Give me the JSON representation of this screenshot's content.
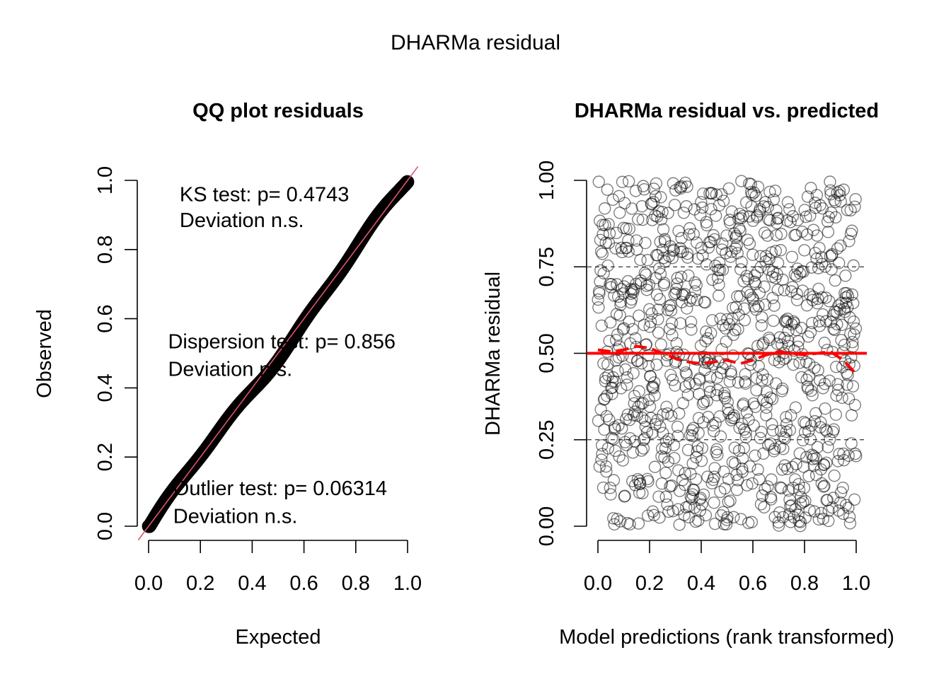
{
  "page_title": "DHARMa residual",
  "chart_data": [
    {
      "type": "scatter",
      "title": "QQ plot residuals",
      "xlabel": "Expected",
      "ylabel": "Observed",
      "xlim": [
        0,
        1
      ],
      "ylim": [
        0,
        1
      ],
      "x_ticks": [
        "0.0",
        "0.2",
        "0.4",
        "0.6",
        "0.8",
        "1.0"
      ],
      "y_ticks": [
        "0.0",
        "0.2",
        "0.4",
        "0.6",
        "0.8",
        "1.0"
      ],
      "x_tick_values": [
        0,
        0.2,
        0.4,
        0.6,
        0.8,
        1.0
      ],
      "y_tick_values": [
        0,
        0.2,
        0.4,
        0.6,
        0.8,
        1.0
      ],
      "reference_line": {
        "from": [
          0,
          0
        ],
        "to": [
          1,
          1
        ],
        "color": "#df536b"
      },
      "points_color": "#000000",
      "point_count": 1000,
      "annotations": [
        {
          "line1": "KS test: p= 0.4743",
          "line2": "Deviation  n.s.",
          "x": 0.12,
          "y1": 0.96,
          "y2": 0.885
        },
        {
          "line1": "Dispersion test: p= 0.856",
          "line2": "Deviation  n.s.",
          "x": 0.075,
          "y1": 0.535,
          "y2": 0.455
        },
        {
          "line1": "Outlier test: p= 0.06314",
          "line2": "Deviation  n.s.",
          "x": 0.095,
          "y1": 0.11,
          "y2": 0.03
        }
      ]
    },
    {
      "type": "scatter",
      "title": "DHARMa residual vs. predicted",
      "xlabel": "Model predictions (rank transformed)",
      "ylabel": "DHARMa residual",
      "xlim": [
        0,
        1
      ],
      "ylim": [
        0,
        1
      ],
      "x_ticks": [
        "0.0",
        "0.2",
        "0.4",
        "0.6",
        "0.8",
        "1.0"
      ],
      "y_ticks": [
        "0.00",
        "0.25",
        "0.50",
        "0.75",
        "1.00"
      ],
      "x_tick_values": [
        0,
        0.2,
        0.4,
        0.6,
        0.8,
        1.0
      ],
      "y_tick_values": [
        0,
        0.25,
        0.5,
        0.75,
        1.0
      ],
      "hlines_dashed": [
        0.25,
        0.75
      ],
      "hline_solid": {
        "y": 0.5,
        "color": "#ff0000"
      },
      "point_count": 1000,
      "points_color": "#000000",
      "smooth_line": {
        "color": "#ff0000",
        "x": [
          0.0,
          0.05,
          0.1,
          0.15,
          0.2,
          0.25,
          0.3,
          0.35,
          0.4,
          0.45,
          0.5,
          0.55,
          0.6,
          0.65,
          0.7,
          0.75,
          0.8,
          0.85,
          0.9,
          0.95,
          1.0
        ],
        "y": [
          0.51,
          0.505,
          0.51,
          0.52,
          0.515,
          0.5,
          0.485,
          0.475,
          0.47,
          0.475,
          0.48,
          0.47,
          0.48,
          0.495,
          0.505,
          0.5,
          0.495,
          0.5,
          0.505,
          0.48,
          0.44
        ]
      }
    }
  ]
}
